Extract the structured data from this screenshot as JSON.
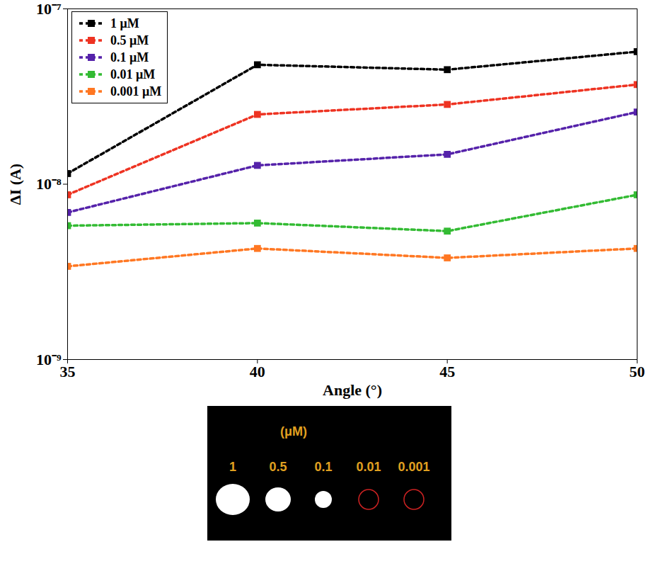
{
  "chart_data": {
    "type": "line",
    "x_label": "Angle (°)",
    "y_label": "ΔI (A)",
    "x": [
      35,
      40,
      45,
      50
    ],
    "series": [
      {
        "name": "1 μM",
        "color": "#000000",
        "values": [
          1.15e-08,
          4.8e-08,
          4.5e-08,
          5.7e-08
        ]
      },
      {
        "name": "0.5 μM",
        "color": "#ee3322",
        "values": [
          8.7e-09,
          2.5e-08,
          2.85e-08,
          3.7e-08
        ]
      },
      {
        "name": "0.1 μM",
        "color": "#5522aa",
        "values": [
          6.9e-09,
          1.28e-08,
          1.48e-08,
          2.58e-08
        ]
      },
      {
        "name": "0.01 μM",
        "color": "#33bb33",
        "values": [
          5.8e-09,
          6e-09,
          5.4e-09,
          8.7e-09
        ]
      },
      {
        "name": "0.001 μM",
        "color": "#ff7722",
        "values": [
          3.4e-09,
          4.3e-09,
          3.8e-09,
          4.3e-09
        ]
      }
    ],
    "xlim": [
      35,
      50
    ],
    "xticks": [
      35,
      40,
      45,
      50
    ],
    "ylim": [
      1e-09,
      1e-07
    ],
    "yticks": [
      {
        "value": 1e-09,
        "label": "10⁻⁹"
      },
      {
        "value": 1e-08,
        "label": "10⁻⁸"
      },
      {
        "value": 1e-07,
        "label": "10⁻⁷"
      }
    ],
    "log": "y",
    "grid": false,
    "legend": "top-left",
    "marker": "square",
    "line_style": "dashed"
  },
  "inset": {
    "title": "(μM)",
    "labels": [
      "1",
      "0.5",
      "0.1",
      "0.01",
      "0.001"
    ],
    "detected": [
      true,
      true,
      true,
      false,
      false
    ]
  }
}
